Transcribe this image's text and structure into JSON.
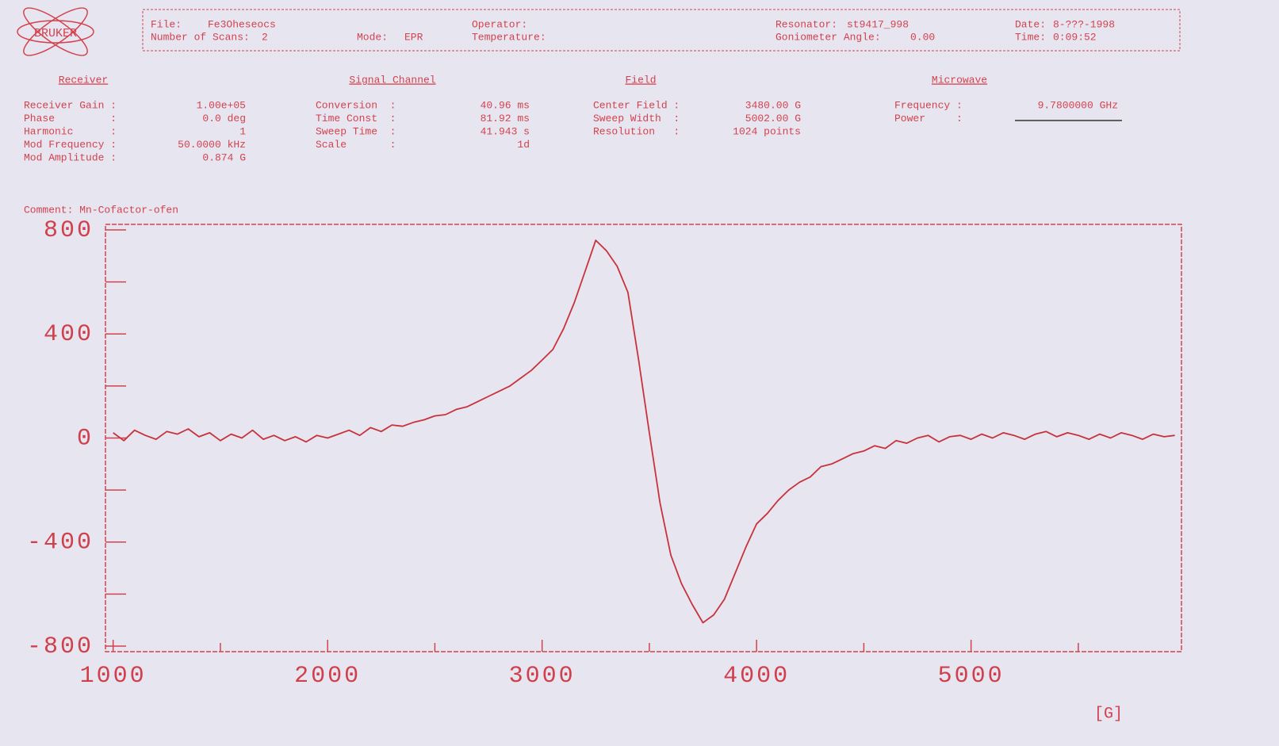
{
  "logo": "BRUKER",
  "header": [
    {
      "label": "File:",
      "value": "Fe3Oheseocs"
    },
    {
      "label": "Number of Scans:",
      "value": "2"
    },
    {
      "label": "Mode:",
      "value": "EPR"
    },
    {
      "label": "Operator:",
      "value": ""
    },
    {
      "label": "Temperature:",
      "value": ""
    },
    {
      "label": "Resonator:",
      "value": "st9417_998"
    },
    {
      "label": "Goniometer Angle:",
      "value": "0.00"
    },
    {
      "label": "Date:",
      "value": "8-???-1998"
    },
    {
      "label": "Time:",
      "value": "0:09:52"
    }
  ],
  "sections": [
    {
      "title": "Receiver",
      "rows": [
        {
          "label": "Receiver Gain :",
          "value": "1.00e+05"
        },
        {
          "label": "Phase         :",
          "value": "0.0 deg"
        },
        {
          "label": "Harmonic      :",
          "value": "1"
        },
        {
          "label": "Mod Frequency :",
          "value": "50.0000 kHz"
        },
        {
          "label": "Mod Amplitude :",
          "value": "0.874 G"
        }
      ]
    },
    {
      "title": "Signal Channel",
      "rows": [
        {
          "label": "Conversion  :",
          "value": "40.96 ms"
        },
        {
          "label": "Time Const  :",
          "value": "81.92 ms"
        },
        {
          "label": "Sweep Time  :",
          "value": "41.943 s"
        },
        {
          "label": "Scale       :",
          "value": "1d"
        }
      ]
    },
    {
      "title": "Field",
      "rows": [
        {
          "label": "Center Field :",
          "value": "3480.00 G"
        },
        {
          "label": "Sweep Width  :",
          "value": "5002.00 G"
        },
        {
          "label": "Resolution   :",
          "value": "1024 points"
        }
      ]
    },
    {
      "title": "Microwave",
      "rows": [
        {
          "label": "Frequency :",
          "value": "9.7800000 GHz"
        },
        {
          "label": "Power     :",
          "value": ""
        }
      ]
    }
  ],
  "chart_data": {
    "type": "line",
    "comment": "Comment: Mn-Cofactor-ofen",
    "xlabel": "[G]",
    "xlim": [
      979,
      5981
    ],
    "ylim": [
      -800,
      800
    ],
    "xticks": [
      1000,
      2000,
      3000,
      4000,
      5000
    ],
    "xminor": [
      1500,
      2500,
      3500,
      4500,
      5500
    ],
    "yticks": [
      -800,
      -400,
      0,
      400,
      800
    ],
    "yminor": [
      -600,
      -200,
      200,
      600
    ],
    "series": [
      {
        "color": "#c8323c",
        "x": [
          1000,
          1050,
          1100,
          1150,
          1200,
          1250,
          1300,
          1350,
          1400,
          1450,
          1500,
          1550,
          1600,
          1650,
          1700,
          1750,
          1800,
          1850,
          1900,
          1950,
          2000,
          2050,
          2100,
          2150,
          2200,
          2250,
          2300,
          2350,
          2400,
          2450,
          2500,
          2550,
          2600,
          2650,
          2700,
          2750,
          2800,
          2850,
          2900,
          2950,
          3000,
          3050,
          3100,
          3150,
          3200,
          3250,
          3300,
          3350,
          3400,
          3450,
          3500,
          3550,
          3600,
          3650,
          3700,
          3750,
          3800,
          3850,
          3900,
          3950,
          4000,
          4050,
          4100,
          4150,
          4200,
          4250,
          4300,
          4350,
          4400,
          4450,
          4500,
          4550,
          4600,
          4650,
          4700,
          4750,
          4800,
          4850,
          4900,
          4950,
          5000,
          5050,
          5100,
          5150,
          5200,
          5250,
          5300,
          5350,
          5400,
          5450,
          5500,
          5550,
          5600,
          5650,
          5700,
          5750,
          5800,
          5850,
          5900,
          5950
        ],
        "values": [
          20,
          -10,
          30,
          10,
          -5,
          25,
          15,
          35,
          5,
          20,
          -10,
          15,
          0,
          30,
          -5,
          10,
          -10,
          5,
          -15,
          10,
          0,
          15,
          30,
          10,
          40,
          25,
          50,
          45,
          60,
          70,
          85,
          90,
          110,
          120,
          140,
          160,
          180,
          200,
          230,
          260,
          300,
          340,
          420,
          520,
          640,
          760,
          720,
          660,
          560,
          300,
          20,
          -250,
          -450,
          -560,
          -640,
          -710,
          -680,
          -620,
          -520,
          -420,
          -330,
          -290,
          -240,
          -200,
          -170,
          -150,
          -110,
          -100,
          -80,
          -60,
          -50,
          -30,
          -40,
          -10,
          -20,
          0,
          10,
          -15,
          5,
          10,
          -5,
          15,
          0,
          20,
          10,
          -5,
          15,
          25,
          5,
          20,
          10,
          -5,
          15,
          0,
          20,
          10,
          -5,
          15,
          5,
          10
        ]
      }
    ]
  }
}
